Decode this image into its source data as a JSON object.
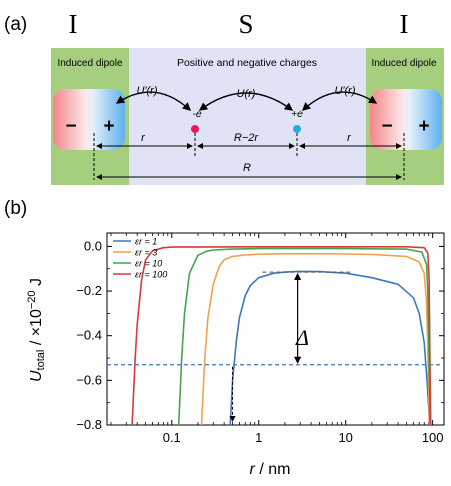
{
  "panel_a": {
    "label": "(a)",
    "region_left": "I",
    "region_middle": "S",
    "region_right": "I",
    "induced_dipole": "Induced dipole",
    "charges_text": "Positive and negative charges",
    "minus": "−",
    "plus": "+",
    "neg_charge": "-e",
    "pos_charge": "+e",
    "potential_prime": "U'(r)",
    "potential": "U(r)",
    "dist_r": "r",
    "dist_R_minus_2r": "R−2r",
    "dist_R": "R",
    "colors": {
      "green": "#a5cf7f",
      "lavender": "#dfe3f5",
      "red_fade": "#f4868a",
      "blue_fade": "#5db0ef",
      "neg_dot": "#e8175d",
      "pos_dot": "#27a9e6"
    }
  },
  "panel_b": {
    "label": "(b)",
    "delta_label": "Δ",
    "ylabel_main": "U",
    "ylabel_sub": "total",
    "ylabel_rest": " / ×10",
    "ylabel_exp": "−20",
    "ylabel_unit": " J",
    "xlabel_main": "r",
    "xlabel_rest": " / nm",
    "xtick_labels": [
      "0.1",
      "1",
      "10",
      "100"
    ],
    "ytick_labels": [
      "0.0",
      "−0.2",
      "−0.4",
      "−0.6",
      "−0.8"
    ]
  },
  "chart_data": {
    "type": "line",
    "xscale": "log",
    "xlim": [
      0.018,
      135
    ],
    "ylim": [
      -0.8,
      0.06
    ],
    "xticks": [
      0.1,
      1,
      10,
      100
    ],
    "yticks": [
      0.0,
      -0.2,
      -0.4,
      -0.6,
      -0.8
    ],
    "legend_position": "top-left",
    "dashed_reference_level": -0.53,
    "series": [
      {
        "name": "εr = 1",
        "color": "#3c78c0",
        "x": [
          0.47,
          0.5,
          0.55,
          0.6,
          0.7,
          0.8,
          1,
          1.5,
          2,
          3,
          5,
          10,
          20,
          40,
          60,
          70,
          80,
          86,
          90,
          92
        ],
        "y": [
          -0.8,
          -0.6,
          -0.43,
          -0.32,
          -0.22,
          -0.175,
          -0.14,
          -0.12,
          -0.115,
          -0.112,
          -0.113,
          -0.12,
          -0.14,
          -0.17,
          -0.23,
          -0.3,
          -0.43,
          -0.6,
          -0.72,
          -0.8
        ]
      },
      {
        "name": "εr = 3",
        "color": "#f0a24f",
        "x": [
          0.22,
          0.24,
          0.26,
          0.3,
          0.35,
          0.4,
          0.5,
          0.7,
          1,
          2,
          5,
          10,
          20,
          50,
          70,
          80,
          85,
          88,
          90,
          92
        ],
        "y": [
          -0.8,
          -0.5,
          -0.32,
          -0.17,
          -0.09,
          -0.06,
          -0.045,
          -0.038,
          -0.035,
          -0.033,
          -0.033,
          -0.034,
          -0.036,
          -0.045,
          -0.07,
          -0.12,
          -0.25,
          -0.45,
          -0.65,
          -0.8
        ]
      },
      {
        "name": "εr = 10",
        "color": "#3ea84a",
        "x": [
          0.12,
          0.13,
          0.14,
          0.16,
          0.2,
          0.25,
          0.3,
          0.5,
          1,
          10,
          50,
          75,
          85,
          88,
          91,
          93
        ],
        "y": [
          -0.8,
          -0.5,
          -0.3,
          -0.12,
          -0.04,
          -0.022,
          -0.016,
          -0.012,
          -0.01,
          -0.01,
          -0.012,
          -0.025,
          -0.08,
          -0.2,
          -0.5,
          -0.8
        ]
      },
      {
        "name": "εr = 100",
        "color": "#d73a3a",
        "x": [
          0.035,
          0.038,
          0.04,
          0.045,
          0.05,
          0.06,
          0.08,
          0.1,
          1,
          10,
          50,
          80,
          88,
          91,
          93,
          95
        ],
        "y": [
          -0.8,
          -0.5,
          -0.35,
          -0.15,
          -0.06,
          -0.02,
          -0.006,
          -0.003,
          -0.002,
          -0.002,
          -0.002,
          -0.006,
          -0.03,
          -0.15,
          -0.5,
          -0.8
        ]
      }
    ],
    "annotation": {
      "delta_top": -0.115,
      "delta_bottom": -0.53,
      "delta_x": 2.8,
      "arrow_x": 0.5
    }
  }
}
